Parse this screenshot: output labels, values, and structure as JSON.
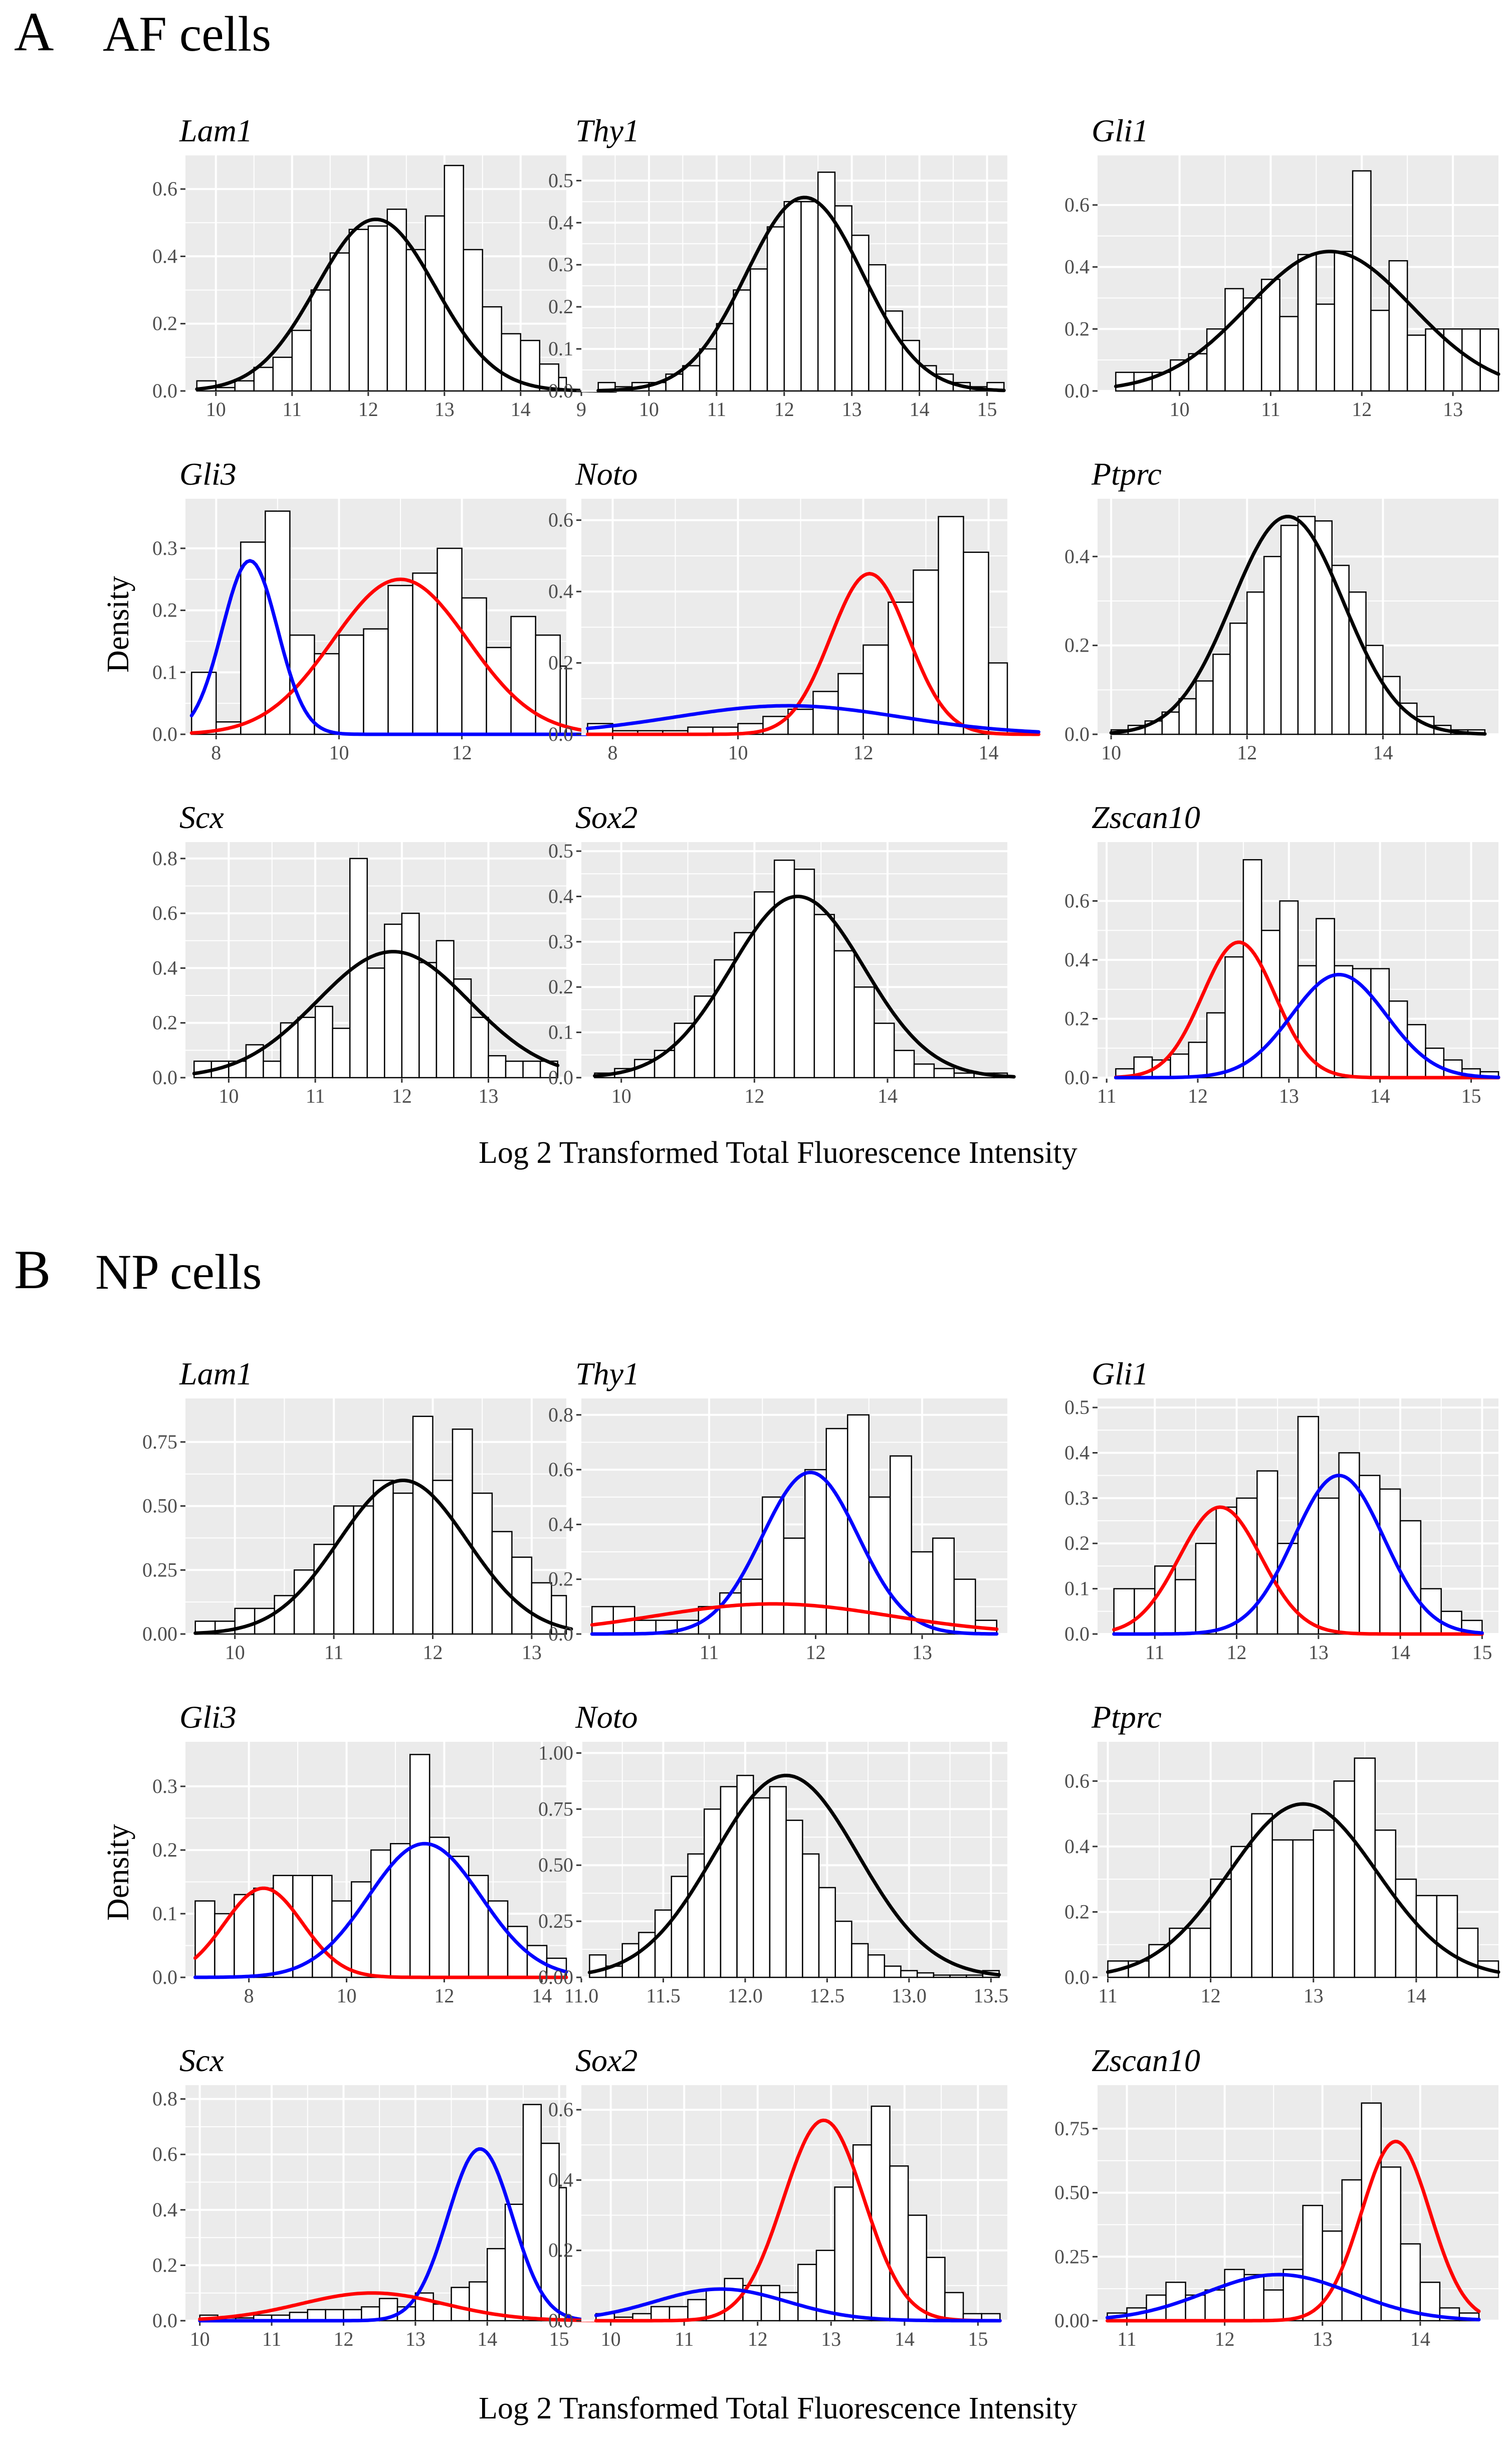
{
  "sections": {
    "A": {
      "letter": "A",
      "title": "AF cells"
    },
    "B": {
      "letter": "B",
      "title": "NP cells"
    }
  },
  "ylabel": "Density",
  "xlabel": "Log 2 Transformed Total Fluorescence Intensity",
  "colors": {
    "single": "#000000",
    "red": "#ff0000",
    "blue": "#0000ff",
    "panel_bg": "#ebebeb",
    "grid": "#ffffff"
  },
  "chart_data": [
    {
      "section": "A",
      "gene": "Lam1",
      "type": "bar",
      "xlim": [
        9.6,
        14.6
      ],
      "ylim": [
        0,
        0.7
      ],
      "xticks": [
        10,
        11,
        12,
        13,
        14
      ],
      "yticks": [
        0.0,
        0.2,
        0.4,
        0.6
      ],
      "ytick_labels": [
        "0.0",
        "0.2",
        "0.4",
        "0.6"
      ],
      "bins": {
        "start": 9.75,
        "width": 0.25,
        "values": [
          0.03,
          0.01,
          0.03,
          0.07,
          0.1,
          0.18,
          0.3,
          0.41,
          0.48,
          0.49,
          0.54,
          0.42,
          0.52,
          0.67,
          0.42,
          0.25,
          0.17,
          0.15,
          0.08,
          0.04,
          0.02,
          0.03
        ]
      },
      "curves": [
        {
          "color": "single",
          "mu": 12.1,
          "sigma": 0.78,
          "amp": 0.51
        }
      ]
    },
    {
      "section": "A",
      "gene": "Thy1",
      "type": "bar",
      "xlim": [
        9.0,
        15.3
      ],
      "ylim": [
        0,
        0.56
      ],
      "xticks": [
        9,
        10,
        11,
        12,
        13,
        14,
        15
      ],
      "yticks": [
        0.0,
        0.1,
        0.2,
        0.3,
        0.4,
        0.5
      ],
      "ytick_labels": [
        "0.0",
        "0.1",
        "0.2",
        "0.3",
        "0.4",
        "0.5"
      ],
      "bins": {
        "start": 9.25,
        "width": 0.25,
        "values": [
          0.02,
          0.01,
          0.02,
          0.02,
          0.04,
          0.06,
          0.1,
          0.16,
          0.24,
          0.29,
          0.39,
          0.45,
          0.45,
          0.52,
          0.44,
          0.37,
          0.3,
          0.19,
          0.12,
          0.06,
          0.04,
          0.02,
          0.01,
          0.02
        ]
      },
      "curves": [
        {
          "color": "single",
          "mu": 12.3,
          "sigma": 0.86,
          "amp": 0.46
        }
      ]
    },
    {
      "section": "A",
      "gene": "Gli1",
      "type": "bar",
      "xlim": [
        9.1,
        13.5
      ],
      "ylim": [
        0,
        0.76
      ],
      "xticks": [
        10,
        11,
        12,
        13
      ],
      "yticks": [
        0.0,
        0.2,
        0.4,
        0.6
      ],
      "ytick_labels": [
        "0.0",
        "0.2",
        "0.4",
        "0.6"
      ],
      "bins": {
        "start": 9.3,
        "width": 0.2,
        "values": [
          0.06,
          0.06,
          0.06,
          0.1,
          0.12,
          0.2,
          0.33,
          0.3,
          0.36,
          0.24,
          0.44,
          0.28,
          0.45,
          0.71,
          0.26,
          0.42,
          0.18,
          0.2,
          0.2,
          0.2,
          0.2
        ]
      },
      "curves": [
        {
          "color": "single",
          "mu": 11.65,
          "sigma": 0.9,
          "amp": 0.45
        }
      ]
    },
    {
      "section": "A",
      "gene": "Gli3",
      "type": "bar",
      "xlim": [
        7.5,
        13.7
      ],
      "ylim": [
        0,
        0.38
      ],
      "xticks": [
        8,
        10,
        12
      ],
      "yticks": [
        0.0,
        0.1,
        0.2,
        0.3
      ],
      "ytick_labels": [
        "0.0",
        "0.1",
        "0.2",
        "0.3"
      ],
      "bins": {
        "start": 7.6,
        "width": 0.4,
        "values": [
          0.1,
          0.02,
          0.31,
          0.36,
          0.16,
          0.13,
          0.16,
          0.17,
          0.24,
          0.26,
          0.3,
          0.22,
          0.14,
          0.19,
          0.16,
          0.11,
          0.03,
          0.02,
          0.01,
          0.04
        ]
      },
      "curves": [
        {
          "color": "red",
          "mu": 11.0,
          "sigma": 1.1,
          "amp": 0.25
        },
        {
          "color": "blue",
          "mu": 8.55,
          "sigma": 0.45,
          "amp": 0.28
        }
      ]
    },
    {
      "section": "A",
      "gene": "Noto",
      "type": "bar",
      "xlim": [
        7.5,
        14.3
      ],
      "ylim": [
        0,
        0.66
      ],
      "xticks": [
        8,
        10,
        12,
        14
      ],
      "yticks": [
        0.0,
        0.2,
        0.4,
        0.6
      ],
      "ytick_labels": [
        "0.0",
        "0.2",
        "0.4",
        "0.6"
      ],
      "bins": {
        "start": 7.6,
        "width": 0.4,
        "values": [
          0.03,
          0.01,
          0.01,
          0.01,
          0.02,
          0.02,
          0.03,
          0.05,
          0.07,
          0.12,
          0.17,
          0.25,
          0.37,
          0.46,
          0.61,
          0.51,
          0.2,
          0.04
        ]
      },
      "curves": [
        {
          "color": "red",
          "mu": 12.1,
          "sigma": 0.62,
          "amp": 0.45
        },
        {
          "color": "blue",
          "mu": 10.8,
          "sigma": 1.8,
          "amp": 0.08
        }
      ]
    },
    {
      "section": "A",
      "gene": "Ptprc",
      "type": "bar",
      "xlim": [
        9.8,
        15.7
      ],
      "ylim": [
        0,
        0.53
      ],
      "xticks": [
        10,
        12,
        14
      ],
      "yticks": [
        0.0,
        0.2,
        0.4
      ],
      "ytick_labels": [
        "0.0",
        "0.2",
        "0.4"
      ],
      "bins": {
        "start": 10.0,
        "width": 0.25,
        "values": [
          0.01,
          0.02,
          0.03,
          0.05,
          0.08,
          0.12,
          0.18,
          0.25,
          0.32,
          0.4,
          0.47,
          0.49,
          0.48,
          0.38,
          0.32,
          0.2,
          0.13,
          0.07,
          0.04,
          0.02,
          0.01,
          0.01
        ]
      },
      "curves": [
        {
          "color": "single",
          "mu": 12.6,
          "sigma": 0.82,
          "amp": 0.49
        }
      ]
    },
    {
      "section": "A",
      "gene": "Scx",
      "type": "bar",
      "xlim": [
        9.5,
        13.9
      ],
      "ylim": [
        0,
        0.86
      ],
      "xticks": [
        10,
        11,
        12,
        13
      ],
      "yticks": [
        0.0,
        0.2,
        0.4,
        0.6,
        0.8
      ],
      "ytick_labels": [
        "0.0",
        "0.2",
        "0.4",
        "0.6",
        "0.8"
      ],
      "bins": {
        "start": 9.6,
        "width": 0.2,
        "values": [
          0.06,
          0.06,
          0.06,
          0.12,
          0.06,
          0.2,
          0.22,
          0.26,
          0.18,
          0.8,
          0.4,
          0.56,
          0.6,
          0.42,
          0.5,
          0.36,
          0.22,
          0.08,
          0.06,
          0.06,
          0.06
        ]
      },
      "curves": [
        {
          "color": "single",
          "mu": 11.9,
          "sigma": 0.88,
          "amp": 0.46
        }
      ]
    },
    {
      "section": "A",
      "gene": "Sox2",
      "type": "bar",
      "xlim": [
        9.4,
        15.8
      ],
      "ylim": [
        0,
        0.52
      ],
      "xticks": [
        10,
        12,
        14
      ],
      "yticks": [
        0.0,
        0.1,
        0.2,
        0.3,
        0.4,
        0.5
      ],
      "ytick_labels": [
        "0.0",
        "0.1",
        "0.2",
        "0.3",
        "0.4",
        "0.5"
      ],
      "bins": {
        "start": 9.6,
        "width": 0.3,
        "values": [
          0.01,
          0.02,
          0.04,
          0.06,
          0.12,
          0.18,
          0.26,
          0.32,
          0.41,
          0.48,
          0.46,
          0.36,
          0.28,
          0.2,
          0.12,
          0.06,
          0.03,
          0.02,
          0.01,
          0.01,
          0.01
        ]
      },
      "curves": [
        {
          "color": "single",
          "mu": 12.65,
          "sigma": 1.0,
          "amp": 0.4
        }
      ]
    },
    {
      "section": "A",
      "gene": "Zscan10",
      "type": "bar",
      "xlim": [
        10.9,
        15.3
      ],
      "ylim": [
        0,
        0.8
      ],
      "xticks": [
        11,
        12,
        13,
        14,
        15
      ],
      "yticks": [
        0.0,
        0.2,
        0.4,
        0.6
      ],
      "ytick_labels": [
        "0.0",
        "0.2",
        "0.4",
        "0.6"
      ],
      "bins": {
        "start": 11.1,
        "width": 0.2,
        "values": [
          0.03,
          0.07,
          0.06,
          0.08,
          0.12,
          0.22,
          0.41,
          0.74,
          0.5,
          0.6,
          0.38,
          0.54,
          0.38,
          0.37,
          0.37,
          0.26,
          0.18,
          0.1,
          0.06,
          0.03,
          0.02
        ]
      },
      "curves": [
        {
          "color": "red",
          "mu": 12.45,
          "sigma": 0.4,
          "amp": 0.46
        },
        {
          "color": "blue",
          "mu": 13.55,
          "sigma": 0.52,
          "amp": 0.35
        }
      ]
    },
    {
      "section": "B",
      "gene": "Lam1",
      "type": "bar",
      "xlim": [
        9.5,
        13.35
      ],
      "ylim": [
        0,
        0.92
      ],
      "xticks": [
        10,
        11,
        12,
        13
      ],
      "yticks": [
        0.0,
        0.25,
        0.5,
        0.75
      ],
      "ytick_labels": [
        "0.00",
        "0.25",
        "0.50",
        "0.75"
      ],
      "bins": {
        "start": 9.6,
        "width": 0.2,
        "values": [
          0.05,
          0.05,
          0.1,
          0.1,
          0.15,
          0.25,
          0.35,
          0.5,
          0.5,
          0.6,
          0.55,
          0.85,
          0.6,
          0.8,
          0.55,
          0.4,
          0.3,
          0.2,
          0.15
        ]
      },
      "curves": [
        {
          "color": "single",
          "mu": 11.7,
          "sigma": 0.65,
          "amp": 0.6
        }
      ]
    },
    {
      "section": "B",
      "gene": "Thy1",
      "type": "bar",
      "xlim": [
        9.8,
        13.8
      ],
      "ylim": [
        0,
        0.86
      ],
      "xticks": [
        11,
        12,
        13
      ],
      "yticks": [
        0.0,
        0.2,
        0.4,
        0.6,
        0.8
      ],
      "ytick_labels": [
        "0.0",
        "0.2",
        "0.4",
        "0.6",
        "0.8"
      ],
      "bins": {
        "start": 9.9,
        "width": 0.2,
        "values": [
          0.1,
          0.1,
          0.05,
          0.05,
          0.05,
          0.1,
          0.15,
          0.2,
          0.5,
          0.35,
          0.6,
          0.75,
          0.8,
          0.5,
          0.65,
          0.3,
          0.35,
          0.2,
          0.05
        ]
      },
      "curves": [
        {
          "color": "blue",
          "mu": 11.95,
          "sigma": 0.45,
          "amp": 0.59
        },
        {
          "color": "red",
          "mu": 11.6,
          "sigma": 1.1,
          "amp": 0.11
        }
      ]
    },
    {
      "section": "B",
      "gene": "Gli1",
      "type": "bar",
      "xlim": [
        10.3,
        15.2
      ],
      "ylim": [
        0,
        0.52
      ],
      "xticks": [
        11,
        12,
        13,
        14,
        15
      ],
      "yticks": [
        0.0,
        0.1,
        0.2,
        0.3,
        0.4,
        0.5
      ],
      "ytick_labels": [
        "0.0",
        "0.1",
        "0.2",
        "0.3",
        "0.4",
        "0.5"
      ],
      "bins": {
        "start": 10.5,
        "width": 0.25,
        "values": [
          0.1,
          0.1,
          0.15,
          0.12,
          0.2,
          0.28,
          0.3,
          0.36,
          0.2,
          0.48,
          0.3,
          0.4,
          0.35,
          0.32,
          0.25,
          0.1,
          0.05,
          0.03
        ]
      },
      "curves": [
        {
          "color": "red",
          "mu": 11.8,
          "sigma": 0.5,
          "amp": 0.28
        },
        {
          "color": "blue",
          "mu": 13.25,
          "sigma": 0.55,
          "amp": 0.35
        }
      ]
    },
    {
      "section": "B",
      "gene": "Gli3",
      "type": "bar",
      "xlim": [
        6.7,
        14.5
      ],
      "ylim": [
        0,
        0.37
      ],
      "xticks": [
        8,
        10,
        12,
        14
      ],
      "yticks": [
        0.0,
        0.1,
        0.2,
        0.3
      ],
      "ytick_labels": [
        "0.0",
        "0.1",
        "0.2",
        "0.3"
      ],
      "bins": {
        "start": 6.9,
        "width": 0.4,
        "values": [
          0.12,
          0.1,
          0.13,
          0.14,
          0.16,
          0.16,
          0.16,
          0.12,
          0.15,
          0.2,
          0.21,
          0.35,
          0.22,
          0.19,
          0.16,
          0.12,
          0.08,
          0.05,
          0.03
        ]
      },
      "curves": [
        {
          "color": "red",
          "mu": 8.3,
          "sigma": 0.8,
          "amp": 0.14
        },
        {
          "color": "blue",
          "mu": 11.6,
          "sigma": 1.15,
          "amp": 0.21
        }
      ]
    },
    {
      "section": "B",
      "gene": "Noto",
      "type": "bar",
      "xlim": [
        11.0,
        13.6
      ],
      "ylim": [
        0,
        1.05
      ],
      "xticks": [
        11.0,
        11.5,
        12.0,
        12.5,
        13.0,
        13.5
      ],
      "yticks": [
        0.0,
        0.25,
        0.5,
        0.75,
        1.0
      ],
      "ytick_labels": [
        "0.00",
        "0.25",
        "0.50",
        "0.75",
        "1.00"
      ],
      "bins": {
        "start": 11.05,
        "width": 0.1,
        "values": [
          0.1,
          0.05,
          0.15,
          0.2,
          0.3,
          0.45,
          0.55,
          0.75,
          0.85,
          0.9,
          0.8,
          0.85,
          0.7,
          0.55,
          0.4,
          0.25,
          0.15,
          0.1,
          0.05,
          0.03,
          0.02,
          0.01,
          0.01,
          0.01,
          0.03
        ]
      },
      "curves": [
        {
          "color": "single",
          "mu": 12.25,
          "sigma": 0.44,
          "amp": 0.9
        }
      ]
    },
    {
      "section": "B",
      "gene": "Ptprc",
      "type": "bar",
      "xlim": [
        10.9,
        14.8
      ],
      "ylim": [
        0,
        0.72
      ],
      "xticks": [
        11,
        12,
        13,
        14
      ],
      "yticks": [
        0.0,
        0.2,
        0.4,
        0.6
      ],
      "ytick_labels": [
        "0.0",
        "0.2",
        "0.4",
        "0.6"
      ],
      "bins": {
        "start": 11.0,
        "width": 0.2,
        "values": [
          0.05,
          0.05,
          0.1,
          0.15,
          0.15,
          0.3,
          0.4,
          0.5,
          0.42,
          0.42,
          0.45,
          0.6,
          0.67,
          0.45,
          0.3,
          0.25,
          0.25,
          0.15,
          0.05
        ]
      },
      "curves": [
        {
          "color": "single",
          "mu": 12.9,
          "sigma": 0.72,
          "amp": 0.53
        }
      ]
    },
    {
      "section": "B",
      "gene": "Scx",
      "type": "bar",
      "xlim": [
        9.8,
        15.1
      ],
      "ylim": [
        0,
        0.85
      ],
      "xticks": [
        10,
        11,
        12,
        13,
        14,
        15
      ],
      "yticks": [
        0.0,
        0.2,
        0.4,
        0.6,
        0.8
      ],
      "ytick_labels": [
        "0.0",
        "0.2",
        "0.4",
        "0.6",
        "0.8"
      ],
      "bins": {
        "start": 10.0,
        "width": 0.25,
        "values": [
          0.02,
          0.01,
          0.01,
          0.02,
          0.02,
          0.03,
          0.04,
          0.04,
          0.04,
          0.05,
          0.08,
          0.05,
          0.1,
          0.06,
          0.12,
          0.14,
          0.26,
          0.42,
          0.78,
          0.64,
          0.48,
          0.3
        ]
      },
      "curves": [
        {
          "color": "blue",
          "mu": 13.9,
          "sigma": 0.45,
          "amp": 0.62
        },
        {
          "color": "red",
          "mu": 12.4,
          "sigma": 1.0,
          "amp": 0.1
        }
      ]
    },
    {
      "section": "B",
      "gene": "Sox2",
      "type": "bar",
      "xlim": [
        9.6,
        15.4
      ],
      "ylim": [
        0,
        0.67
      ],
      "xticks": [
        10,
        11,
        12,
        13,
        14,
        15
      ],
      "yticks": [
        0.0,
        0.2,
        0.4,
        0.6
      ],
      "ytick_labels": [
        "0.0",
        "0.2",
        "0.4",
        "0.6"
      ],
      "bins": {
        "start": 9.8,
        "width": 0.25,
        "values": [
          0.02,
          0.01,
          0.02,
          0.04,
          0.04,
          0.06,
          0.09,
          0.12,
          0.1,
          0.1,
          0.08,
          0.16,
          0.2,
          0.38,
          0.5,
          0.61,
          0.44,
          0.3,
          0.18,
          0.08,
          0.02,
          0.02
        ]
      },
      "curves": [
        {
          "color": "red",
          "mu": 12.9,
          "sigma": 0.55,
          "amp": 0.57
        },
        {
          "color": "blue",
          "mu": 11.5,
          "sigma": 0.9,
          "amp": 0.09
        }
      ]
    },
    {
      "section": "B",
      "gene": "Zscan10",
      "type": "bar",
      "xlim": [
        10.7,
        14.8
      ],
      "ylim": [
        0,
        0.92
      ],
      "xticks": [
        11,
        12,
        13,
        14
      ],
      "yticks": [
        0.0,
        0.25,
        0.5,
        0.75
      ],
      "ytick_labels": [
        "0.00",
        "0.25",
        "0.50",
        "0.75"
      ],
      "bins": {
        "start": 10.8,
        "width": 0.2,
        "values": [
          0.03,
          0.05,
          0.1,
          0.15,
          0.1,
          0.12,
          0.2,
          0.18,
          0.12,
          0.2,
          0.45,
          0.35,
          0.55,
          0.85,
          0.6,
          0.3,
          0.15,
          0.05,
          0.03
        ]
      },
      "curves": [
        {
          "color": "red",
          "mu": 13.75,
          "sigma": 0.35,
          "amp": 0.7
        },
        {
          "color": "blue",
          "mu": 12.55,
          "sigma": 0.75,
          "amp": 0.18
        }
      ]
    }
  ]
}
